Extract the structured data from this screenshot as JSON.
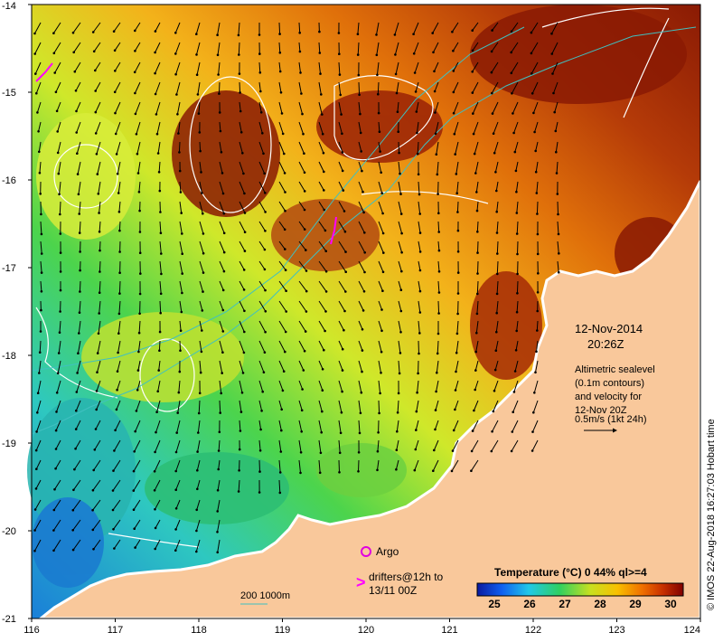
{
  "map": {
    "lat_ticks": [
      "-14",
      "-15",
      "-16",
      "-17",
      "-18",
      "-19",
      "-20",
      "-21"
    ],
    "lon_ticks": [
      "116",
      "117",
      "118",
      "119",
      "120",
      "121",
      "122",
      "123",
      "124"
    ],
    "date": "12-Nov-2014",
    "time": "20:26Z",
    "info_lines": [
      "Altimetric sealevel",
      "(0.1m contours)",
      "and velocity for",
      "12-Nov 20Z",
      "0.5m/s (1kt 24h)"
    ],
    "legend_argo": "Argo",
    "legend_drifters_1": "drifters@12h to",
    "legend_drifters_2": "13/11 00Z",
    "depth_label": "200  1000m",
    "colorbar_title": "Temperature (°C) 0 44% ql>=4",
    "colorbar_ticks": [
      "25",
      "26",
      "27",
      "28",
      "29",
      "30"
    ],
    "credit": "© IMOS 22-Aug-2018 16:27:03 Hobart time",
    "colors": {
      "land": "#F9C89B",
      "argo": "#E000E0",
      "drifter": "#FF00FF",
      "contour": "#FFFFFF",
      "isobath": "#40C0C0"
    }
  }
}
